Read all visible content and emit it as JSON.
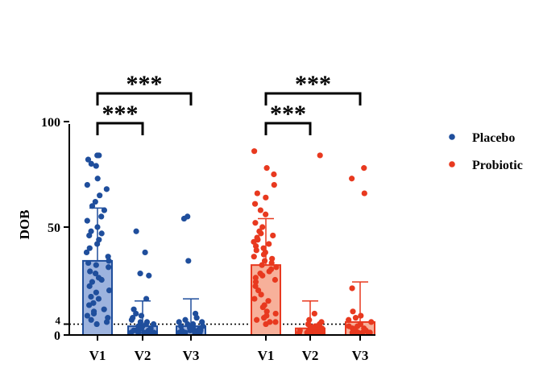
{
  "chart_data": {
    "type": "bar",
    "ylabel": "DOB",
    "ylim": [
      0,
      100
    ],
    "yticks": [
      {
        "value": 0,
        "label": "0"
      },
      {
        "value": 4,
        "label": "4"
      },
      {
        "value": 50,
        "label": "50"
      },
      {
        "value": 100,
        "label": "100"
      }
    ],
    "reference_line": {
      "value": 4,
      "style": "dotted"
    },
    "categories": [
      "V1",
      "V2",
      "V3"
    ],
    "legend": {
      "position": "right"
    },
    "colors": {
      "Placebo": {
        "point": "#1f4e9c",
        "fill": "#9db3de",
        "edge": "#1f4e9c"
      },
      "Probiotic": {
        "point": "#e8391f",
        "fill": "#f7b09a",
        "edge": "#e8391f"
      }
    },
    "series": [
      {
        "name": "Placebo",
        "bars": [
          {
            "category": "V1",
            "mean": 34,
            "sd_upper": 59,
            "points": [
              84,
              84,
              82,
              80,
              79,
              73,
              70,
              68,
              65,
              62,
              60,
              58,
              55,
              53,
              50,
              48,
              47,
              46,
              44,
              42,
              40,
              38,
              36,
              34,
              33,
              32,
              31,
              29,
              28,
              26,
              25,
              24,
              22,
              20,
              19,
              17,
              16,
              14,
              13,
              11,
              10,
              9,
              8,
              7,
              6,
              5,
              4
            ]
          },
          {
            "category": "V2",
            "mean": 3,
            "sd_upper": 15,
            "points": [
              48,
              38,
              28,
              27,
              16,
              11,
              9,
              8,
              7,
              6,
              5,
              5,
              4,
              4,
              3,
              3,
              3,
              2,
              2,
              2,
              2,
              1,
              1,
              1,
              1,
              1,
              0,
              0,
              0,
              0,
              0,
              0,
              0,
              0,
              0,
              0
            ]
          },
          {
            "category": "V3",
            "mean": 3,
            "sd_upper": 16,
            "points": [
              55,
              54,
              34,
              9,
              7,
              6,
              5,
              5,
              4,
              4,
              3,
              3,
              3,
              2,
              2,
              2,
              1,
              1,
              1,
              1,
              0,
              0,
              0,
              0,
              0,
              0,
              0,
              0,
              0,
              0,
              0,
              0
            ]
          }
        ]
      },
      {
        "name": "Probiotic",
        "bars": [
          {
            "category": "V1",
            "mean": 32,
            "sd_upper": 54,
            "points": [
              86,
              78,
              75,
              70,
              66,
              64,
              61,
              58,
              56,
              52,
              50,
              48,
              47,
              46,
              45,
              44,
              43,
              42,
              41,
              40,
              39,
              38,
              37,
              36,
              35,
              34,
              33,
              32,
              31,
              30,
              29,
              28,
              27,
              26,
              25,
              24,
              22,
              20,
              18,
              16,
              15,
              13,
              12,
              10,
              9,
              8,
              7,
              6,
              5,
              5,
              4
            ]
          },
          {
            "category": "V2",
            "mean": 2,
            "sd_upper": 15,
            "points": [
              84,
              9,
              6,
              5,
              4,
              4,
              3,
              3,
              3,
              2,
              2,
              2,
              2,
              1,
              1,
              1,
              1,
              1,
              0,
              0,
              0,
              0,
              0,
              0,
              0,
              0,
              0,
              0,
              0,
              0
            ]
          },
          {
            "category": "V3",
            "mean": 5,
            "sd_upper": 24,
            "points": [
              78,
              73,
              66,
              21,
              10,
              8,
              7,
              6,
              5,
              4,
              3,
              3,
              2,
              2,
              1,
              1,
              1,
              0,
              0,
              0,
              0,
              0,
              0,
              0,
              0
            ]
          }
        ]
      }
    ],
    "significance": [
      {
        "series": "Placebo",
        "from": "V1",
        "to": "V2",
        "label": "***"
      },
      {
        "series": "Placebo",
        "from": "V1",
        "to": "V3",
        "label": "***"
      },
      {
        "series": "Probiotic",
        "from": "V1",
        "to": "V2",
        "label": "***"
      },
      {
        "series": "Probiotic",
        "from": "V1",
        "to": "V3",
        "label": "***"
      }
    ]
  }
}
